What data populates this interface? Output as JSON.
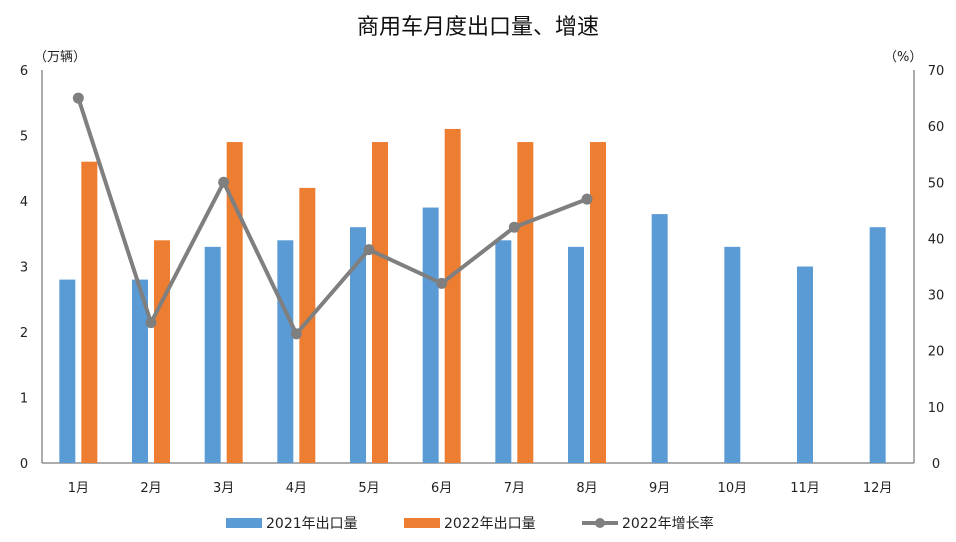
{
  "chart_data": {
    "type": "bar",
    "title": "商用车月度出口量、增速",
    "categories": [
      "1月",
      "2月",
      "3月",
      "4月",
      "5月",
      "6月",
      "7月",
      "8月",
      "9月",
      "10月",
      "11月",
      "12月"
    ],
    "y_left": {
      "unit": "（万辆）",
      "ylim": [
        0,
        6
      ],
      "ticks": [
        "0",
        "1",
        "2",
        "3",
        "4",
        "5",
        "6"
      ]
    },
    "y_right": {
      "unit": "（%）",
      "ylim": [
        0,
        70
      ],
      "ticks": [
        "0",
        "10",
        "20",
        "30",
        "40",
        "50",
        "60",
        "70"
      ]
    },
    "series": [
      {
        "name": "2021年出口量",
        "kind": "bar",
        "axis": "left",
        "color": "#5B9BD5",
        "values": [
          2.8,
          2.8,
          3.3,
          3.4,
          3.6,
          3.9,
          3.4,
          3.3,
          3.8,
          3.3,
          3.0,
          3.6
        ]
      },
      {
        "name": "2022年出口量",
        "kind": "bar",
        "axis": "left",
        "color": "#ED7D31",
        "values": [
          4.6,
          3.4,
          4.9,
          4.2,
          4.9,
          5.1,
          4.9,
          4.9,
          null,
          null,
          null,
          null
        ]
      },
      {
        "name": "2022年增长率",
        "kind": "line",
        "axis": "right",
        "color": "#7F7F7F",
        "values": [
          65,
          25,
          50,
          23,
          38,
          32,
          42,
          47,
          null,
          null,
          null,
          null
        ]
      }
    ],
    "grid": false,
    "legend_position": "bottom"
  }
}
